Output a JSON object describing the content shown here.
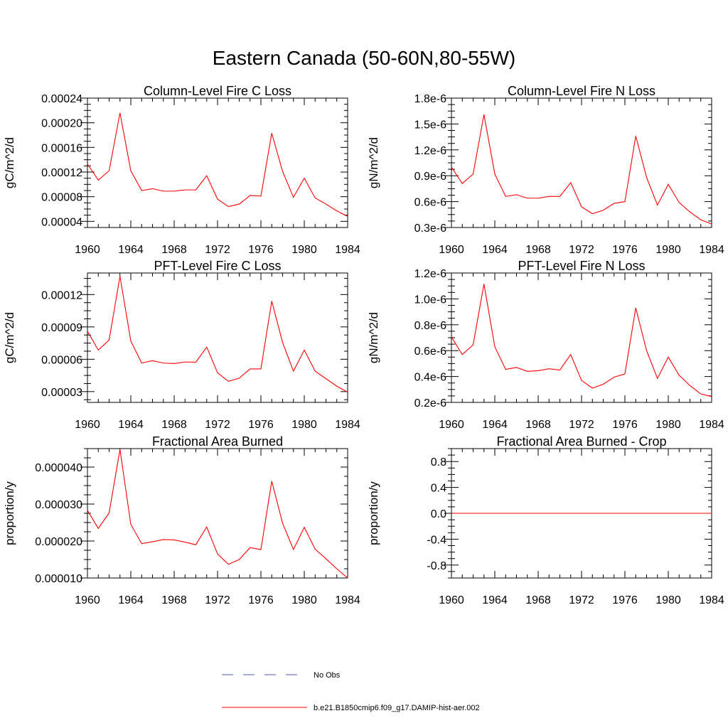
{
  "figure": {
    "title": "Eastern Canada (50-60N,80-55W)",
    "legend": [
      {
        "label": "No Obs",
        "color": "#4a5aa8",
        "dash": true
      },
      {
        "label": "b.e21.B1850cmip6.f09_g17.DAMIP-hist-aer.002",
        "color": "#ff0000",
        "dash": false
      }
    ]
  },
  "chart_data": [
    {
      "type": "line",
      "title": "Column-Level Fire C Loss",
      "ylabel": "gC/m^2/d",
      "xlim": [
        1960,
        1984
      ],
      "ylim": [
        3e-05,
        0.00024
      ],
      "xticks": [
        "1960",
        "1964",
        "1968",
        "1972",
        "1976",
        "1980",
        "1984"
      ],
      "yticks": [
        {
          "v": 4e-05,
          "label": "0.00004"
        },
        {
          "v": 8e-05,
          "label": "0.00008"
        },
        {
          "v": 0.00012,
          "label": "0.00012"
        },
        {
          "v": 0.00016,
          "label": "0.00016"
        },
        {
          "v": 0.0002,
          "label": "0.00020"
        },
        {
          "v": 0.00024,
          "label": "0.00024"
        }
      ],
      "series": [
        {
          "color": "#ff0000",
          "x": [
            1960,
            1961,
            1962,
            1963,
            1964,
            1965,
            1966,
            1967,
            1968,
            1969,
            1970,
            1971,
            1972,
            1973,
            1974,
            1975,
            1976,
            1977,
            1978,
            1979,
            1980,
            1981,
            1982,
            1983,
            1984
          ],
          "values": [
            0.000133,
            0.000107,
            0.000122,
            0.000216,
            0.000122,
            9e-05,
            9.3e-05,
            8.9e-05,
            8.9e-05,
            9.1e-05,
            9.1e-05,
            0.000114,
            7.6e-05,
            6.4e-05,
            6.8e-05,
            8.2e-05,
            8.1e-05,
            0.000183,
            0.000121,
            7.9e-05,
            0.00011,
            7.8e-05,
            6.8e-05,
            5.7e-05,
            4.8e-05
          ]
        }
      ]
    },
    {
      "type": "line",
      "title": "Column-Level Fire N Loss",
      "ylabel": "gN/m^2/d",
      "xlim": [
        1960,
        1984
      ],
      "ylim": [
        0.3,
        1.8
      ],
      "yunit": "e-6",
      "xticks": [
        "1960",
        "1964",
        "1968",
        "1972",
        "1976",
        "1980",
        "1984"
      ],
      "yticks": [
        {
          "v": 0.3,
          "label": "0.3e-6"
        },
        {
          "v": 0.6,
          "label": "0.6e-6"
        },
        {
          "v": 0.9,
          "label": "0.9e-6"
        },
        {
          "v": 1.2,
          "label": "1.2e-6"
        },
        {
          "v": 1.5,
          "label": "1.5e-6"
        },
        {
          "v": 1.8,
          "label": "1.8e-6"
        }
      ],
      "series": [
        {
          "color": "#ff0000",
          "x": [
            1960,
            1961,
            1962,
            1963,
            1964,
            1965,
            1966,
            1967,
            1968,
            1969,
            1970,
            1971,
            1972,
            1973,
            1974,
            1975,
            1976,
            1977,
            1978,
            1979,
            1980,
            1981,
            1982,
            1983,
            1984
          ],
          "values": [
            1.0,
            0.81,
            0.92,
            1.61,
            0.92,
            0.66,
            0.68,
            0.64,
            0.64,
            0.66,
            0.66,
            0.82,
            0.54,
            0.46,
            0.5,
            0.58,
            0.6,
            1.36,
            0.88,
            0.56,
            0.8,
            0.59,
            0.48,
            0.39,
            0.34
          ]
        }
      ]
    },
    {
      "type": "line",
      "title": "PFT-Level Fire C Loss",
      "ylabel": "gC/m^2/d",
      "xlim": [
        1960,
        1984
      ],
      "ylim": [
        2e-05,
        0.00014
      ],
      "xticks": [
        "1960",
        "1964",
        "1968",
        "1972",
        "1976",
        "1980",
        "1984"
      ],
      "yticks": [
        {
          "v": 3e-05,
          "label": "0.00003"
        },
        {
          "v": 6e-05,
          "label": "0.00006"
        },
        {
          "v": 9e-05,
          "label": "0.00009"
        },
        {
          "v": 0.00012,
          "label": "0.00012"
        }
      ],
      "series": [
        {
          "color": "#ff0000",
          "x": [
            1960,
            1961,
            1962,
            1963,
            1964,
            1965,
            1966,
            1967,
            1968,
            1969,
            1970,
            1971,
            1972,
            1973,
            1974,
            1975,
            1976,
            1977,
            1978,
            1979,
            1980,
            1981,
            1982,
            1983,
            1984
          ],
          "values": [
            8.6e-05,
            6.85e-05,
            7.78e-05,
            0.000137,
            7.7e-05,
            5.65e-05,
            5.87e-05,
            5.65e-05,
            5.6e-05,
            5.75e-05,
            5.73e-05,
            7.13e-05,
            4.75e-05,
            3.95e-05,
            4.25e-05,
            5.1e-05,
            5.1e-05,
            0.000114,
            7.55e-05,
            4.9e-05,
            6.85e-05,
            4.9e-05,
            4.2e-05,
            3.5e-05,
            2.95e-05
          ]
        }
      ]
    },
    {
      "type": "line",
      "title": "PFT-Level Fire N Loss",
      "ylabel": "gN/m^2/d",
      "xlim": [
        1960,
        1984
      ],
      "ylim": [
        0.2,
        1.2
      ],
      "yunit": "e-6",
      "xticks": [
        "1960",
        "1964",
        "1968",
        "1972",
        "1976",
        "1980",
        "1984"
      ],
      "yticks": [
        {
          "v": 0.2,
          "label": "0.2e-6"
        },
        {
          "v": 0.4,
          "label": "0.4e-6"
        },
        {
          "v": 0.6,
          "label": "0.6e-6"
        },
        {
          "v": 0.8,
          "label": "0.8e-6"
        },
        {
          "v": 1.0,
          "label": "1.0e-6"
        },
        {
          "v": 1.2,
          "label": "1.2e-6"
        }
      ],
      "series": [
        {
          "color": "#ff0000",
          "x": [
            1960,
            1961,
            1962,
            1963,
            1964,
            1965,
            1966,
            1967,
            1968,
            1969,
            1970,
            1971,
            1972,
            1973,
            1974,
            1975,
            1976,
            1977,
            1978,
            1979,
            1980,
            1981,
            1982,
            1983,
            1984
          ],
          "values": [
            0.705,
            0.57,
            0.645,
            1.115,
            0.63,
            0.455,
            0.47,
            0.44,
            0.445,
            0.46,
            0.45,
            0.57,
            0.37,
            0.31,
            0.34,
            0.395,
            0.42,
            0.93,
            0.6,
            0.385,
            0.55,
            0.41,
            0.33,
            0.265,
            0.245
          ]
        }
      ]
    },
    {
      "type": "line",
      "title": "Fractional Area Burned",
      "ylabel": "proportion/y",
      "xlim": [
        1960,
        1984
      ],
      "ylim": [
        1e-05,
        4.5e-05
      ],
      "xticks": [
        "1960",
        "1964",
        "1968",
        "1972",
        "1976",
        "1980",
        "1984"
      ],
      "yticks": [
        {
          "v": 1e-05,
          "label": "0.000010"
        },
        {
          "v": 2e-05,
          "label": "0.000020"
        },
        {
          "v": 3e-05,
          "label": "0.000030"
        },
        {
          "v": 4e-05,
          "label": "0.000040"
        }
      ],
      "series": [
        {
          "color": "#ff0000",
          "x": [
            1960,
            1961,
            1962,
            1963,
            1964,
            1965,
            1966,
            1967,
            1968,
            1969,
            1970,
            1971,
            1972,
            1973,
            1974,
            1975,
            1976,
            1977,
            1978,
            1979,
            1980,
            1981,
            1982,
            1983,
            1984
          ],
          "values": [
            2.83e-05,
            2.34e-05,
            2.76e-05,
            4.48e-05,
            2.45e-05,
            1.93e-05,
            1.98e-05,
            2.04e-05,
            2.03e-05,
            1.97e-05,
            1.9e-05,
            2.38e-05,
            1.65e-05,
            1.37e-05,
            1.5e-05,
            1.82e-05,
            1.77e-05,
            3.62e-05,
            2.48e-05,
            1.77e-05,
            2.37e-05,
            1.78e-05,
            1.52e-05,
            1.25e-05,
            1e-05
          ]
        }
      ]
    },
    {
      "type": "line",
      "title": "Fractional Area Burned - Crop",
      "ylabel": "proportion/y",
      "xlim": [
        1960,
        1984
      ],
      "ylim": [
        -1.0,
        1.0
      ],
      "xticks": [
        "1960",
        "1964",
        "1968",
        "1972",
        "1976",
        "1980",
        "1984"
      ],
      "yticks": [
        {
          "v": -0.8,
          "label": "-0.8"
        },
        {
          "v": -0.4,
          "label": "-0.4"
        },
        {
          "v": 0.0,
          "label": "0.0"
        },
        {
          "v": 0.4,
          "label": "0.4"
        },
        {
          "v": 0.8,
          "label": "0.8"
        }
      ],
      "series": [
        {
          "color": "#ff0000",
          "x": [
            1960,
            1984
          ],
          "values": [
            0.0,
            0.0
          ]
        }
      ]
    }
  ]
}
